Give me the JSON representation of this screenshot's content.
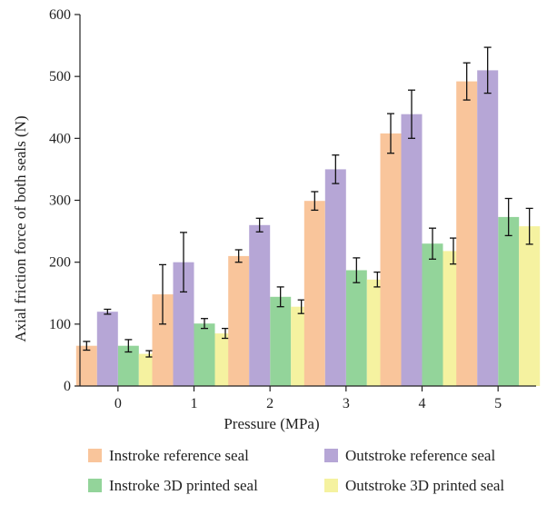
{
  "chart_data": {
    "type": "bar",
    "title": "",
    "xlabel": "Pressure (MPa)",
    "ylabel": "Axial friction force of both seals (N)",
    "ylim": [
      0,
      600
    ],
    "yticks": [
      0,
      100,
      200,
      300,
      400,
      500,
      600
    ],
    "categories": [
      "0",
      "1",
      "2",
      "3",
      "4",
      "5"
    ],
    "series": [
      {
        "name": "Instroke reference seal",
        "color": "#f9c59b",
        "values": [
          65,
          148,
          210,
          299,
          408,
          492
        ],
        "errors": [
          7,
          48,
          10,
          15,
          32,
          30
        ]
      },
      {
        "name": "Instroke 3D printed seal",
        "color": "#93d49a",
        "values": [
          65,
          101,
          144,
          187,
          230,
          273
        ],
        "errors": [
          10,
          8,
          16,
          20,
          25,
          30
        ]
      },
      {
        "name": "Outstroke reference seal",
        "color": "#b6a6d6",
        "values": [
          120,
          200,
          260,
          350,
          439,
          510
        ],
        "errors": [
          4,
          48,
          11,
          23,
          39,
          37
        ]
      },
      {
        "name": "Outstroke 3D printed seal",
        "color": "#f5f2a0",
        "values": [
          52,
          85,
          128,
          172,
          218,
          258
        ],
        "errors": [
          5,
          8,
          11,
          12,
          21,
          29
        ]
      }
    ],
    "legend_position": "bottom"
  }
}
